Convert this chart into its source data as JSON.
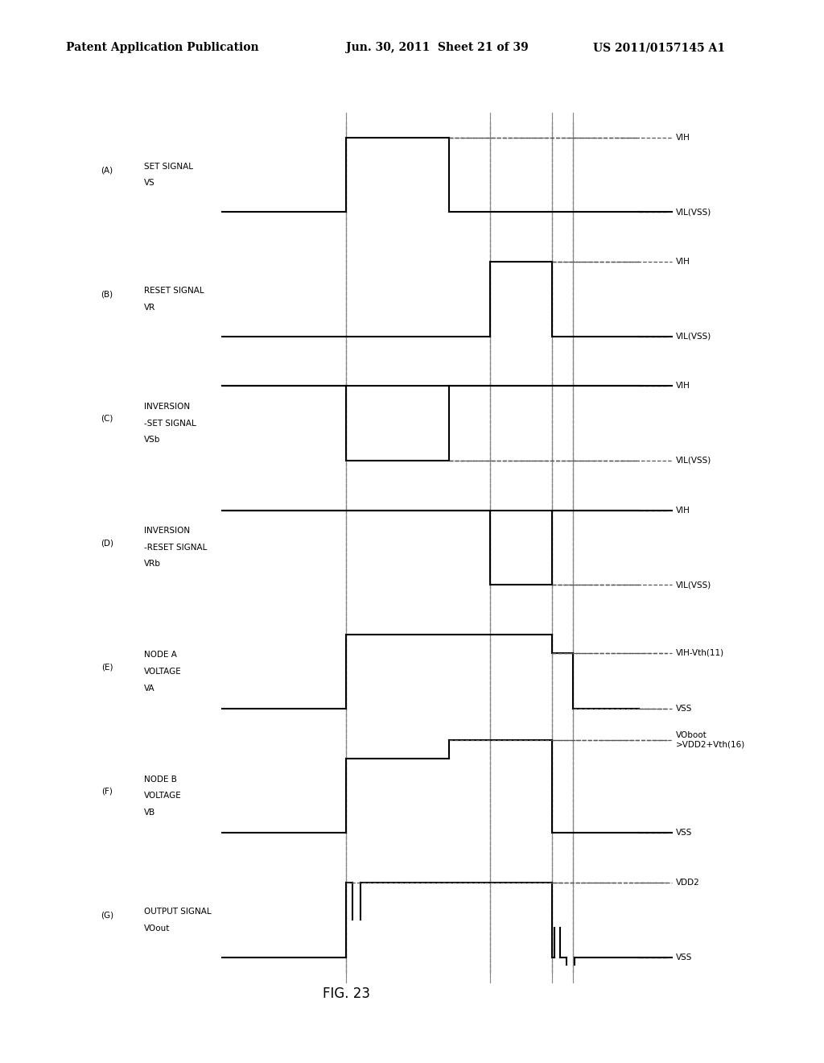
{
  "header_left": "Patent Application Publication",
  "header_mid": "Jun. 30, 2011  Sheet 21 of 39",
  "header_right": "US 2011/0157145 A1",
  "figure_label": "FIG. 23",
  "background_color": "#ffffff",
  "signals": [
    {
      "label_lines": [
        "SET SIGNAL",
        "VS"
      ],
      "prefix": "(A)",
      "high_label": "VIH",
      "low_label": "VIL(VSS)",
      "waveform": "pulse_high_early"
    },
    {
      "label_lines": [
        "RESET SIGNAL",
        "VR"
      ],
      "prefix": "(B)",
      "high_label": "VIH",
      "low_label": "VIL(VSS)",
      "waveform": "pulse_high_mid"
    },
    {
      "label_lines": [
        "INVERSION",
        "-SET SIGNAL",
        "VSb"
      ],
      "prefix": "(C)",
      "high_label": "VIH",
      "low_label": "VIL(VSS)",
      "waveform": "pulse_low_early"
    },
    {
      "label_lines": [
        "INVERSION",
        "-RESET SIGNAL",
        "VRb"
      ],
      "prefix": "(D)",
      "high_label": "VIH",
      "low_label": "VIL(VSS)",
      "waveform": "pulse_low_mid"
    },
    {
      "label_lines": [
        "NODE A",
        "VOLTAGE",
        "VA"
      ],
      "prefix": "(E)",
      "high_label": "VIH-Vth(11)",
      "low_label": "VSS",
      "waveform": "node_a"
    },
    {
      "label_lines": [
        "NODE B",
        "VOLTAGE",
        "VB"
      ],
      "prefix": "(F)",
      "high_label": "VOboot\n>VDD2+Vth(16)",
      "low_label": "VSS",
      "waveform": "node_b"
    },
    {
      "label_lines": [
        "OUTPUT SIGNAL",
        "VOout"
      ],
      "prefix": "(G)",
      "high_label": "VDD2",
      "low_label": "VSS",
      "waveform": "output"
    }
  ],
  "timing": {
    "t0": 0.0,
    "t1": 2.0,
    "t2": 3.0,
    "t3": 5.5,
    "t4": 6.5,
    "t5": 8.0,
    "t6": 8.5,
    "tend": 10.0
  }
}
